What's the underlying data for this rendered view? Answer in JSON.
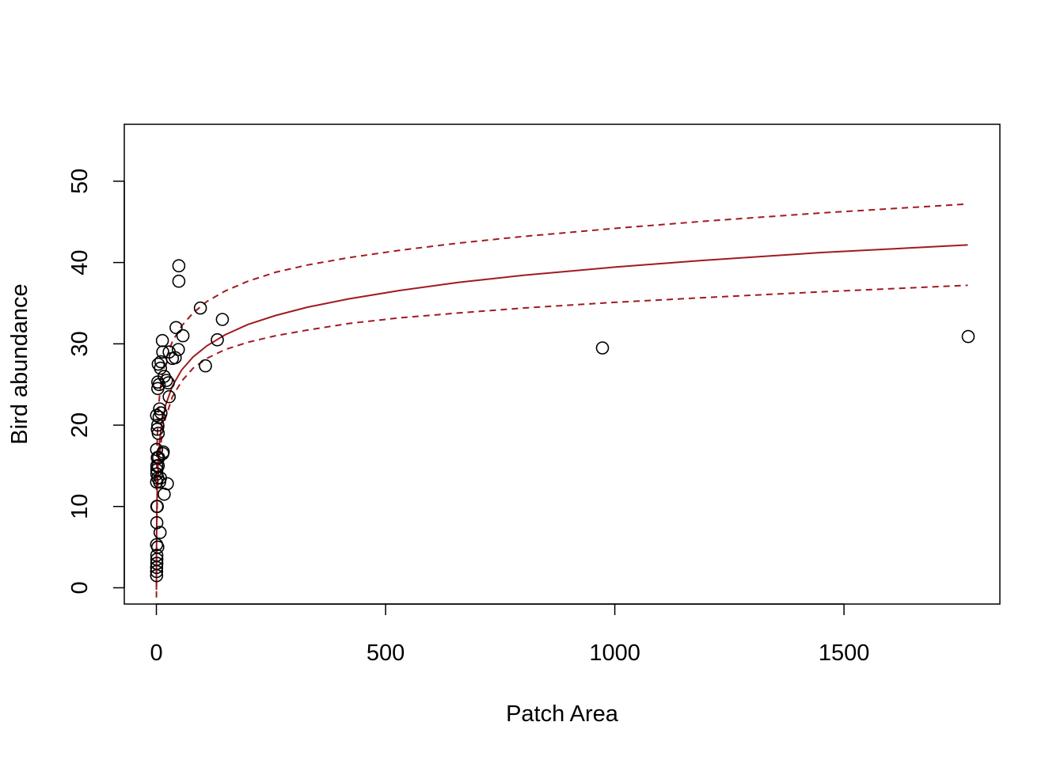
{
  "chart_data": {
    "type": "scatter",
    "xlabel": "Patch Area",
    "ylabel": "Bird abundance",
    "xlim": [
      -70,
      1840
    ],
    "ylim": [
      -2,
      57
    ],
    "x_ticks": [
      {
        "value": 0,
        "label": "0"
      },
      {
        "value": 500,
        "label": "500"
      },
      {
        "value": 1000,
        "label": "1000"
      },
      {
        "value": 1500,
        "label": "1500"
      }
    ],
    "y_ticks": [
      {
        "value": 0,
        "label": "0"
      },
      {
        "value": 10,
        "label": "10"
      },
      {
        "value": 20,
        "label": "20"
      },
      {
        "value": 30,
        "label": "30"
      },
      {
        "value": 40,
        "label": "40"
      },
      {
        "value": 50,
        "label": "50"
      }
    ],
    "points": [
      [
        0.5,
        1.5
      ],
      [
        0.5,
        2.0
      ],
      [
        0.5,
        2.5
      ],
      [
        1,
        3.0
      ],
      [
        1,
        3.5
      ],
      [
        1,
        4.0
      ],
      [
        0.5,
        5.3
      ],
      [
        1,
        10.0
      ],
      [
        2,
        10.0
      ],
      [
        1,
        8.0
      ],
      [
        3,
        5.0
      ],
      [
        8,
        6.8
      ],
      [
        0.5,
        13.0
      ],
      [
        1,
        14.0
      ],
      [
        1,
        14.5
      ],
      [
        1,
        15.0
      ],
      [
        2,
        16.0
      ],
      [
        0.5,
        17.0
      ],
      [
        3,
        13.5
      ],
      [
        4,
        15.0
      ],
      [
        5,
        16.0
      ],
      [
        7,
        13.0
      ],
      [
        9,
        13.5
      ],
      [
        15,
        16.7
      ],
      [
        14,
        16.5
      ],
      [
        24,
        12.8
      ],
      [
        17,
        11.5
      ],
      [
        2,
        19.5
      ],
      [
        3,
        20.0
      ],
      [
        4,
        19.0
      ],
      [
        6,
        21.0
      ],
      [
        0.5,
        21.2
      ],
      [
        7,
        22.0
      ],
      [
        10,
        21.5
      ],
      [
        3,
        24.5
      ],
      [
        3,
        25.3
      ],
      [
        6,
        25.0
      ],
      [
        4,
        27.5
      ],
      [
        10,
        27.8
      ],
      [
        9,
        27.0
      ],
      [
        17,
        26.0
      ],
      [
        22,
        25.5
      ],
      [
        26,
        25.2
      ],
      [
        28,
        23.5
      ],
      [
        14,
        29.0
      ],
      [
        13,
        30.4
      ],
      [
        28,
        29.0
      ],
      [
        35,
        28.2
      ],
      [
        41,
        28.3
      ],
      [
        43,
        32.0
      ],
      [
        58,
        31.0
      ],
      [
        48,
        29.3
      ],
      [
        49,
        37.7
      ],
      [
        49,
        39.6
      ],
      [
        96,
        34.4
      ],
      [
        107,
        27.3
      ],
      [
        133,
        30.5
      ],
      [
        144,
        33.0
      ],
      [
        973,
        29.5
      ],
      [
        1771,
        30.9
      ]
    ],
    "fit": {
      "x": [
        0.1,
        0.3,
        1,
        2,
        4,
        7,
        12,
        20,
        35,
        55,
        80,
        110,
        150,
        200,
        260,
        330,
        420,
        530,
        660,
        800,
        1000,
        1200,
        1450,
        1770
      ],
      "y": [
        -0.3,
        5.2,
        11.3,
        14.9,
        18.4,
        21.2,
        23.9,
        26.4,
        29.2,
        31.5,
        33.4,
        35.0,
        36.6,
        38.1,
        39.4,
        40.6,
        41.8,
        43.0,
        44.2,
        45.2,
        46.4,
        47.4,
        48.5,
        49.6
      ],
      "scale_factor": 0.85,
      "color": "#a11a1f"
    },
    "ci_upper": {
      "x": [
        0.3,
        1,
        2,
        4,
        7,
        12,
        20,
        35,
        55,
        80,
        110,
        150,
        200,
        260,
        330,
        420,
        530,
        660,
        800,
        1000,
        1200,
        1450,
        1770
      ],
      "y": [
        12.0,
        15.8,
        18.6,
        21.3,
        23.7,
        25.9,
        28.0,
        30.3,
        32.2,
        33.8,
        35.2,
        36.5,
        37.7,
        38.8,
        39.7,
        40.6,
        41.5,
        42.4,
        43.2,
        44.2,
        45.1,
        46.1,
        47.2
      ],
      "color": "#a11a1f"
    },
    "ci_lower": {
      "x": [
        0.1,
        0.3,
        1,
        2,
        4,
        7,
        12,
        20,
        35,
        55,
        80,
        110,
        150,
        200,
        260,
        330,
        420,
        530,
        660,
        800,
        1000,
        1200,
        1450,
        1770
      ],
      "y": [
        -1.2,
        2.5,
        7.8,
        10.8,
        13.8,
        16.3,
        18.7,
        20.9,
        23.5,
        25.4,
        27.0,
        28.2,
        29.3,
        30.2,
        31.0,
        31.7,
        32.5,
        33.2,
        33.8,
        34.4,
        35.1,
        35.7,
        36.4,
        37.2
      ],
      "color": "#a11a1f"
    }
  }
}
